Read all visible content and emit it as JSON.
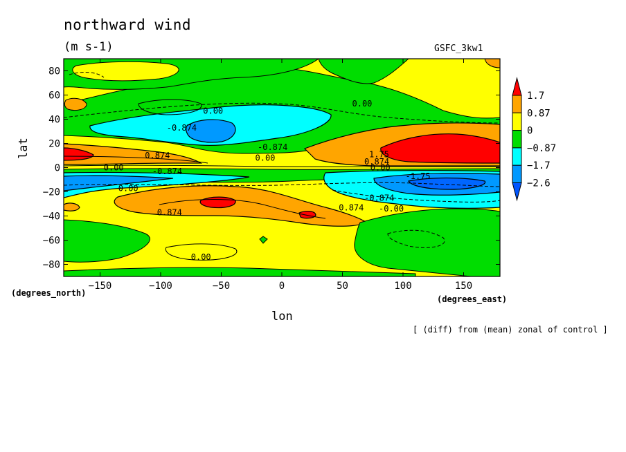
{
  "chart_data": {
    "type": "contour",
    "title": "northward wind",
    "units": "(m s-1)",
    "model_label": "GSFC_3kw1",
    "xlabel": "lon",
    "ylabel": "lat",
    "x_units": "(degrees_east)",
    "y_units": "(degrees_north)",
    "note": "[ (diff) from (mean) zonal of control ]",
    "xlim": [
      -180,
      180
    ],
    "ylim": [
      -90,
      90
    ],
    "x_ticks": [
      -150,
      -100,
      -50,
      0,
      50,
      100,
      150
    ],
    "y_ticks": [
      -80,
      -60,
      -40,
      -20,
      0,
      20,
      40,
      60,
      80
    ],
    "colorbar": {
      "levels": [
        "1.7",
        "0.87",
        "0",
        "-0.87",
        "-1.7",
        "-2.6"
      ],
      "colors": [
        "#ff0000",
        "#ffa500",
        "#ffff00",
        "#00dd00",
        "#00ffff",
        "#0099ff",
        "#0055ff"
      ]
    },
    "contour_labels": [
      {
        "text": "0.00",
        "lon": -65,
        "lat": 47
      },
      {
        "text": "0.00",
        "lon": 58,
        "lat": 53
      },
      {
        "text": "-0.874",
        "lon": -95,
        "lat": 33
      },
      {
        "text": "-0.874",
        "lon": -20,
        "lat": 17
      },
      {
        "text": "0.00",
        "lon": -22,
        "lat": 8
      },
      {
        "text": "0.874",
        "lon": -113,
        "lat": 10
      },
      {
        "text": "1.75",
        "lon": 72,
        "lat": 11
      },
      {
        "text": "0.874",
        "lon": 68,
        "lat": 5
      },
      {
        "text": "0.00",
        "lon": 73,
        "lat": 0
      },
      {
        "text": "0.00",
        "lon": -147,
        "lat": 0
      },
      {
        "text": "-0.874",
        "lon": -107,
        "lat": -3
      },
      {
        "text": "-1.75",
        "lon": 102,
        "lat": -7
      },
      {
        "text": "0.00",
        "lon": -135,
        "lat": -17
      },
      {
        "text": "-0.874",
        "lon": 68,
        "lat": -25
      },
      {
        "text": "0.874",
        "lon": -103,
        "lat": -37
      },
      {
        "text": "0.874",
        "lon": 47,
        "lat": -33
      },
      {
        "text": "-0.00",
        "lon": 80,
        "lat": -34
      },
      {
        "text": "0.00",
        "lon": -75,
        "lat": -74
      }
    ]
  }
}
